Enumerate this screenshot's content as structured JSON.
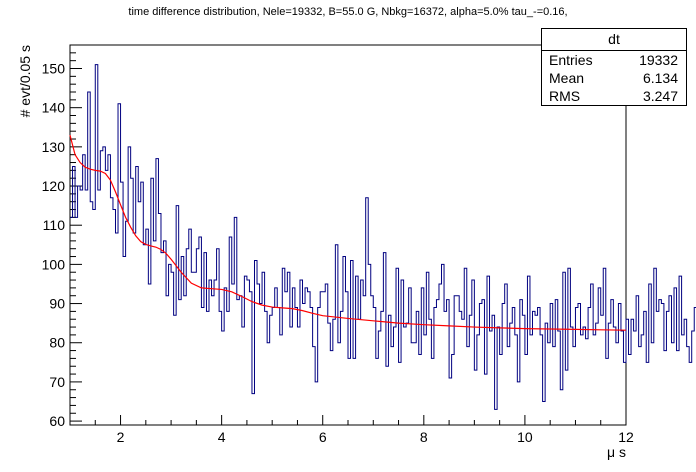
{
  "title": "time difference distribution, Nele=19332, B=55.0 G, Nbkg=16372, alpha=5.0% tau_-=0.16,",
  "stats": {
    "name": "dt",
    "rows": [
      {
        "label": "Entries",
        "value": "19332"
      },
      {
        "label": "Mean",
        "value": "6.134"
      },
      {
        "label": "RMS",
        "value": "3.247"
      }
    ]
  },
  "colors": {
    "histogram": "#000080",
    "fit": "#ff0000",
    "axis": "#000000"
  },
  "chart_data": {
    "type": "line",
    "title": "time difference distribution, Nele=19332, B=55.0 G, Nbkg=16372, alpha=5.0% tau_-=0.16,",
    "xlabel": "μ s",
    "ylabel": "# evt/0.05 s",
    "xlim": [
      1,
      12
    ],
    "ylim": [
      59,
      156
    ],
    "bin_width": 0.05,
    "x_ticks": [
      2,
      4,
      6,
      8,
      10,
      12
    ],
    "y_ticks": [
      60,
      70,
      80,
      90,
      100,
      110,
      120,
      130,
      140,
      150
    ],
    "series": [
      {
        "kind": "histogram",
        "x_start": 1.0,
        "values": [
          112,
          125,
          112,
          120,
          119,
          128,
          119,
          144,
          116,
          114,
          151,
          119,
          129,
          130,
          124,
          128,
          117,
          114,
          108,
          141,
          121,
          102,
          111,
          130,
          122,
          108,
          125,
          116,
          121,
          105,
          109,
          95,
          122,
          106,
          127,
          113,
          103,
          106,
          92,
          100,
          98,
          87,
          115,
          91,
          102,
          92,
          104,
          109,
          98,
          98,
          104,
          107,
          89,
          103,
          88,
          96,
          92,
          96,
          104,
          88,
          83,
          94,
          88,
          107,
          95,
          112,
          91,
          92,
          84,
          97,
          96,
          93,
          67,
          101,
          95,
          90,
          98,
          88,
          80,
          87,
          89,
          94,
          89,
          82,
          99,
          93,
          98,
          84,
          94,
          89,
          84,
          96,
          90,
          94,
          93,
          89,
          79,
          70,
          89,
          93,
          93,
          95,
          85,
          78,
          86,
          105,
          80,
          88,
          102,
          93,
          76,
          101,
          76,
          97,
          86,
          96,
          92,
          117,
          100,
          92,
          89,
          76,
          83,
          88,
          103,
          74,
          87,
          79,
          84,
          99,
          75,
          96,
          84,
          85,
          94,
          80,
          80,
          88,
          77,
          94,
          82,
          98,
          86,
          76,
          89,
          91,
          95,
          100,
          88,
          91,
          71,
          77,
          92,
          92,
          88,
          86,
          99,
          79,
          87,
          96,
          73,
          82,
          90,
          91,
          72,
          97,
          83,
          87,
          63,
          84,
          77,
          90,
          95,
          79,
          85,
          89,
          82,
          70,
          91,
          87,
          77,
          97,
          82,
          88,
          87,
          89,
          82,
          65,
          85,
          80,
          90,
          79,
          91,
          83,
          68,
          98,
          73,
          99,
          84,
          79,
          89,
          90,
          82,
          84,
          81,
          89,
          95,
          82,
          85,
          94,
          87,
          99,
          76,
          85,
          91,
          84,
          80,
          90,
          83,
          75,
          86,
          77,
          86,
          83,
          92,
          79,
          82,
          88,
          75,
          95,
          80,
          99,
          88,
          91,
          90,
          78,
          88,
          92,
          80,
          94,
          78,
          97,
          82,
          86,
          79,
          75,
          83,
          89,
          80,
          68,
          82,
          81,
          90,
          97,
          74,
          80,
          88,
          99,
          80,
          72,
          95,
          82,
          85,
          92,
          79,
          70,
          91,
          84,
          99,
          80,
          70,
          90,
          88,
          92,
          86,
          79,
          74,
          86,
          95,
          97,
          80,
          82,
          79,
          77,
          70,
          84,
          94,
          96,
          103,
          84,
          87,
          73,
          89,
          77,
          90,
          82,
          98,
          82,
          96,
          92,
          100,
          77,
          92,
          84,
          87,
          95,
          88,
          79,
          77,
          93,
          104,
          92,
          75,
          86,
          85,
          89,
          79,
          96,
          87,
          101,
          93,
          78,
          86,
          94,
          84,
          80,
          88,
          78,
          99,
          87,
          85,
          94,
          79,
          81,
          83,
          70,
          98,
          98,
          90,
          79,
          82,
          89,
          83,
          83,
          77,
          85,
          75,
          85,
          92,
          78,
          82,
          77,
          100,
          85,
          71,
          98,
          95,
          79,
          85,
          79,
          73,
          87,
          94,
          84,
          89,
          86,
          78,
          84,
          80,
          88,
          70,
          88,
          80,
          87,
          98,
          91,
          92,
          94,
          80,
          86,
          84,
          78,
          90,
          69,
          82,
          81,
          74,
          79,
          95,
          80,
          75,
          78,
          77,
          88,
          67,
          95,
          80,
          96,
          80,
          87,
          87,
          96,
          102,
          89,
          75,
          73,
          91,
          90,
          95,
          83,
          88,
          84,
          92,
          78,
          89,
          81,
          86,
          74,
          90,
          83,
          98,
          79,
          82,
          79,
          83,
          87,
          86,
          80,
          79,
          89,
          76,
          91,
          85,
          78,
          81,
          83,
          92,
          76,
          80,
          90,
          81,
          92,
          70,
          77,
          90,
          87,
          81,
          80,
          92,
          69,
          89,
          77,
          85,
          91,
          72,
          88,
          85,
          81,
          90,
          81,
          85,
          74,
          90,
          85,
          85,
          101,
          80,
          86,
          84,
          96,
          91,
          68,
          82,
          87,
          77,
          96,
          103,
          95,
          84,
          83,
          80,
          86,
          97,
          81,
          84,
          92,
          78,
          90,
          80,
          80,
          82,
          83,
          72,
          82,
          88,
          85,
          82,
          84,
          92,
          78,
          92,
          76,
          86,
          89,
          80,
          91,
          81,
          88,
          79,
          73,
          87,
          79,
          84,
          82,
          93,
          80,
          96,
          78,
          90,
          99,
          85,
          86,
          79,
          82,
          78,
          85,
          84,
          81,
          87,
          70,
          71,
          82,
          80,
          85,
          79,
          88,
          84,
          99,
          79,
          82,
          96,
          84,
          70,
          77,
          88,
          75,
          86,
          88,
          85,
          77,
          86,
          93,
          77,
          72,
          82,
          75,
          84,
          85,
          81,
          80,
          88,
          85,
          99,
          87,
          70,
          83,
          93,
          81,
          91,
          70,
          80,
          71,
          85,
          89,
          98,
          85,
          82,
          80,
          79,
          71,
          88,
          85,
          78,
          87,
          93,
          91,
          80,
          81,
          76,
          90,
          67,
          83,
          85,
          89,
          92,
          86,
          84,
          79,
          74,
          85,
          90,
          86,
          89,
          80,
          79,
          68,
          85,
          86,
          98,
          92,
          84,
          88,
          78,
          79,
          92,
          85,
          76,
          87,
          83,
          84,
          96,
          87,
          72,
          83,
          85,
          88,
          89,
          92,
          77,
          83,
          85,
          88,
          90,
          89,
          84,
          71,
          86,
          81,
          78,
          67,
          73,
          86,
          79,
          95,
          100,
          83,
          97,
          89,
          79,
          88,
          71,
          81,
          83,
          78,
          85,
          90,
          81,
          87,
          81,
          88,
          79,
          84,
          85,
          92,
          86,
          75,
          91,
          81,
          92,
          71,
          90,
          86,
          75,
          87,
          71,
          92,
          90,
          80,
          88,
          77,
          84,
          80,
          87,
          92,
          86,
          95,
          86,
          75,
          94,
          80,
          84,
          79,
          89,
          91,
          83,
          99,
          69,
          89,
          89,
          88,
          79,
          74,
          83,
          97,
          84,
          80,
          77,
          81,
          82,
          74,
          83,
          85,
          79,
          91,
          70,
          74,
          85,
          93,
          82,
          83,
          87,
          80,
          75,
          91,
          79,
          93,
          78,
          83,
          85,
          82,
          87,
          80,
          85,
          80,
          84,
          79,
          84,
          93,
          89,
          76,
          81,
          85,
          80,
          89,
          83,
          84,
          86,
          81,
          76,
          87,
          80,
          96,
          80,
          84,
          79,
          92,
          71,
          82,
          85,
          77,
          88,
          84,
          80,
          92,
          86,
          91,
          88,
          74,
          83,
          90,
          89,
          93,
          87,
          81,
          84,
          84,
          96,
          93,
          83,
          79,
          87,
          73,
          85,
          83,
          84,
          91,
          99,
          81,
          85,
          71,
          74,
          82,
          81,
          91,
          89,
          88,
          84,
          74,
          79,
          77,
          92,
          76,
          88,
          96,
          80,
          78,
          88,
          79,
          84,
          80,
          85,
          76,
          95,
          83,
          89,
          84,
          75,
          71,
          88,
          78,
          79,
          86,
          93,
          84,
          87,
          80,
          83,
          87,
          76,
          87,
          74,
          86,
          83,
          85,
          81,
          83,
          80,
          89,
          86,
          79,
          86,
          75,
          91,
          87,
          79,
          89,
          84,
          87,
          76,
          84,
          80,
          88,
          91,
          86,
          83,
          78,
          95,
          84,
          86,
          89,
          80,
          85,
          89,
          77,
          78,
          83,
          78,
          84,
          75,
          84,
          79,
          87,
          81,
          77,
          91,
          93,
          84,
          76,
          83,
          89,
          89,
          92,
          80,
          86,
          79,
          79,
          83,
          83,
          72,
          88,
          79,
          86,
          84,
          84,
          80,
          90,
          87,
          70,
          87,
          80,
          83,
          81,
          89,
          88,
          84,
          85,
          80,
          81,
          89,
          80,
          85,
          90,
          79,
          84,
          84,
          83,
          86,
          86,
          86,
          72,
          76,
          89,
          85,
          90,
          84,
          85,
          87,
          80,
          93,
          78,
          79,
          89,
          78,
          82,
          89,
          70,
          86,
          92,
          83,
          81,
          92,
          82,
          80,
          83,
          84,
          83,
          86,
          83,
          80,
          86,
          86,
          84,
          83,
          85,
          83,
          82,
          91,
          81,
          71,
          93,
          84,
          82,
          85,
          77,
          88,
          81,
          77,
          87,
          83,
          86,
          79,
          96,
          84,
          79,
          91,
          82,
          83,
          71,
          80,
          85,
          79,
          88,
          78,
          86,
          86,
          83,
          81,
          85,
          78,
          90,
          86,
          87,
          79,
          84,
          83,
          87,
          82,
          80,
          86,
          82,
          86,
          80,
          89,
          84,
          81,
          87,
          82,
          88,
          83,
          82,
          85,
          79,
          86,
          84,
          83,
          88,
          83,
          79,
          85,
          84,
          82,
          86,
          80,
          85,
          83,
          87,
          81,
          84,
          79,
          86,
          88,
          83,
          82,
          85,
          80,
          84,
          83,
          86,
          81,
          85,
          84,
          79,
          87,
          82,
          80,
          78,
          92
        ]
      },
      {
        "kind": "fit",
        "x": [
          1.0,
          1.1,
          1.2,
          1.3,
          1.4,
          1.5,
          1.6,
          1.7,
          1.8,
          1.9,
          2.0,
          2.1,
          2.2,
          2.3,
          2.4,
          2.5,
          2.6,
          2.7,
          2.8,
          2.9,
          3.0,
          3.2,
          3.4,
          3.6,
          3.8,
          4.0,
          4.2,
          4.4,
          4.6,
          4.8,
          5.0,
          5.2,
          5.4,
          5.6,
          5.8,
          6.0,
          6.5,
          7.0,
          7.5,
          8.0,
          8.5,
          9.0,
          9.5,
          10.0,
          10.5,
          11.0,
          11.5,
          12.0
        ],
        "y": [
          133,
          128,
          126,
          124.8,
          124.3,
          124.0,
          123.8,
          123.2,
          121.5,
          118.5,
          115.2,
          112.0,
          109.5,
          107.3,
          105.8,
          105.1,
          104.7,
          104.4,
          103.8,
          102.8,
          101.3,
          98.0,
          95.2,
          94.0,
          93.8,
          93.6,
          93.0,
          91.8,
          90.5,
          89.6,
          89.1,
          88.9,
          88.7,
          88.2,
          87.5,
          86.9,
          86.2,
          85.6,
          85.0,
          84.6,
          84.3,
          84.0,
          83.8,
          83.6,
          83.5,
          83.4,
          83.3,
          83.2
        ]
      }
    ]
  }
}
